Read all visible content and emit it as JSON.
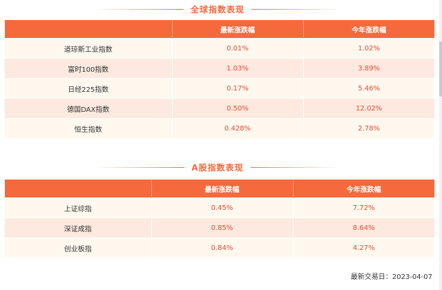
{
  "global_section": {
    "title": "全球指数表现",
    "headers": [
      "",
      "最新涨跌幅",
      "今年涨跌幅"
    ],
    "rows": [
      {
        "name": "道琼斯工业指数",
        "latest": "0.01%",
        "ytd": "1.02%"
      },
      {
        "name": "富时100指数",
        "latest": "1.03%",
        "ytd": "3.89%"
      },
      {
        "name": "日经225指数",
        "latest": "0.17%",
        "ytd": "5.46%"
      },
      {
        "name": "德国DAX指数",
        "latest": "0.50%",
        "ytd": "12.02%"
      },
      {
        "name": "恒生指数",
        "latest": "0.428%",
        "ytd": "2.78%"
      }
    ]
  },
  "a_share_section": {
    "title": "A股指数表现",
    "headers": [
      "",
      "最新涨跌幅",
      "今年涨跌幅"
    ],
    "rows": [
      {
        "name": "上证综指",
        "latest": "0.45%",
        "ytd": "7.72%"
      },
      {
        "name": "深证成指",
        "latest": "0.85%",
        "ytd": "8.64%"
      },
      {
        "name": "创业板指",
        "latest": "0.84%",
        "ytd": "4.27%"
      }
    ]
  },
  "footer": {
    "trade_date": "最新交易日：2023-04-07"
  },
  "colors": {
    "accent": "#f6693c",
    "value_red": "#ea4a30",
    "row_light": "#fef8ef",
    "row_dark": "#fde9df"
  }
}
